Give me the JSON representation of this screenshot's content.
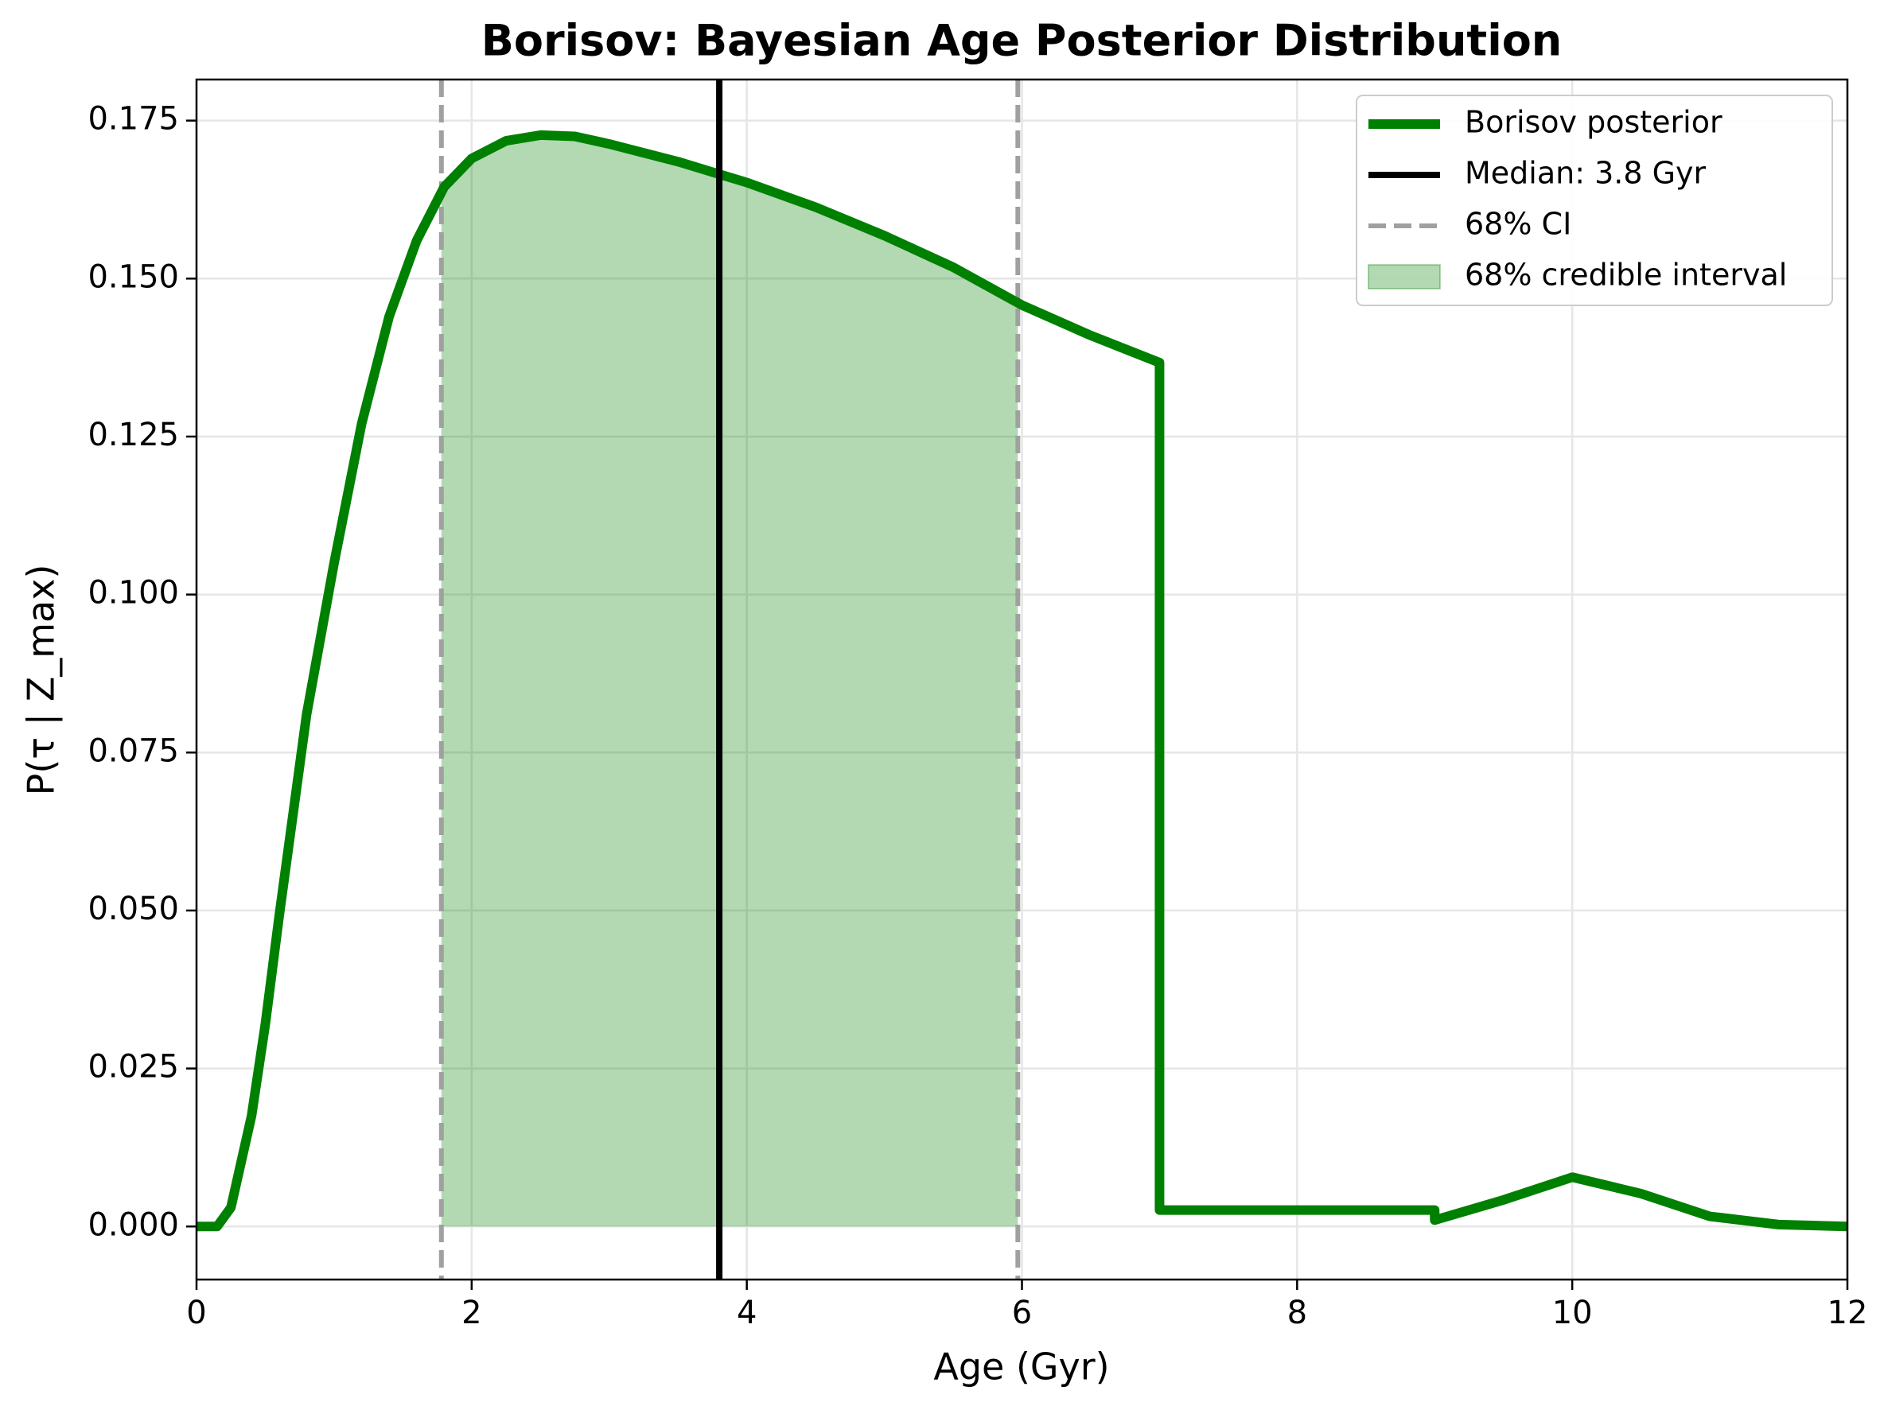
{
  "chart_data": {
    "type": "line",
    "title": "Borisov: Bayesian Age Posterior Distribution",
    "x_label": "Age (Gyr)",
    "y_label": "P(τ | Z_max)",
    "x": [
      0,
      0.15,
      0.25,
      0.4,
      0.5,
      0.6,
      0.8,
      1.0,
      1.2,
      1.4,
      1.6,
      1.8,
      2.0,
      2.25,
      2.5,
      2.75,
      3.0,
      3.5,
      4.0,
      4.5,
      5.0,
      5.5,
      6.0,
      6.5,
      7.0,
      7.0,
      9.0,
      9.0,
      9.5,
      10.0,
      10.5,
      11.0,
      11.5,
      12.0
    ],
    "series": [
      {
        "name": "Borisov posterior",
        "color": "#008000",
        "values": [
          0,
          0,
          0.003,
          0.0175,
          0.032,
          0.049,
          0.081,
          0.105,
          0.127,
          0.144,
          0.156,
          0.1645,
          0.169,
          0.1718,
          0.1727,
          0.1725,
          0.1713,
          0.1685,
          0.1652,
          0.1613,
          0.1568,
          0.1518,
          0.1458,
          0.141,
          0.1367,
          0.0026,
          0.0026,
          0.001,
          0.0042,
          0.0078,
          0.0052,
          0.0016,
          0.0003,
          0
        ]
      }
    ],
    "median_line": {
      "name": "Median: 3.8 Gyr",
      "x": 3.8,
      "color": "#000000"
    },
    "ci_lines": {
      "name": "68% CI",
      "x": [
        1.78,
        5.97
      ],
      "color": "#a0a0a0"
    },
    "fill": {
      "name": "68% credible interval",
      "color": "#008000"
    },
    "xlim": [
      0,
      12
    ],
    "ylim": [
      -0.0084,
      0.1815
    ],
    "xticks": [
      0,
      2,
      4,
      6,
      8,
      10,
      12
    ],
    "yticks": [
      {
        "value": 0,
        "label": "0.000"
      },
      {
        "value": 0.025,
        "label": "0.025"
      },
      {
        "value": 0.05,
        "label": "0.050"
      },
      {
        "value": 0.075,
        "label": "0.075"
      },
      {
        "value": 0.1,
        "label": "0.100"
      },
      {
        "value": 0.125,
        "label": "0.125"
      },
      {
        "value": 0.15,
        "label": "0.150"
      },
      {
        "value": 0.175,
        "label": "0.175"
      }
    ],
    "grid": true,
    "legend": "upper right"
  }
}
